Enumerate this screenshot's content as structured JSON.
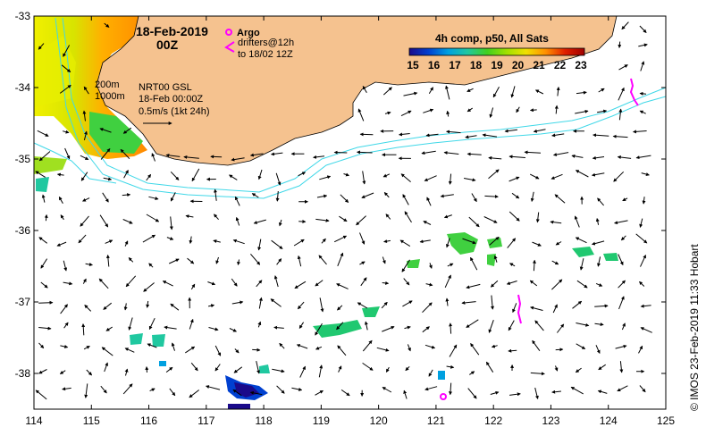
{
  "map": {
    "date": "18-Feb-2019",
    "time": "00Z",
    "legend_argo": "Argo",
    "legend_drifters": "drifters@12h",
    "legend_drifters2": "to 18/02 12Z",
    "colorbar_title": "4h comp, p50, All Sats",
    "colorbar_ticks": [
      "15",
      "16",
      "17",
      "18",
      "19",
      "20",
      "21",
      "22",
      "23"
    ],
    "colorbar_colors": [
      "#1a0a8a",
      "#0040d0",
      "#00a0e0",
      "#20c8a0",
      "#40d020",
      "#a0e000",
      "#f0e000",
      "#ff9000",
      "#e02000",
      "#a00000"
    ],
    "isobath_200": "200m",
    "isobath_1000": "1000m",
    "product_line1": "NRT00 GSL",
    "product_line2": "18-Feb 00:00Z",
    "product_line3": "0.5m/s (1kt 24h)",
    "credit": "© IMOS 23-Feb-2019 11:33 Hobart",
    "lon_ticks": [
      "114",
      "115",
      "116",
      "117",
      "118",
      "119",
      "120",
      "121",
      "122",
      "123",
      "124",
      "125"
    ],
    "lat_ticks": [
      "-33",
      "-34",
      "-35",
      "-36",
      "-37",
      "-38"
    ],
    "land_color": "#f5c28f",
    "ocean_color": "#ffffff",
    "argo_color": "#ff00ff",
    "contour_color": "#40d8e8",
    "lon_range": [
      114,
      125
    ],
    "lat_range": [
      -38.5,
      -33
    ]
  }
}
